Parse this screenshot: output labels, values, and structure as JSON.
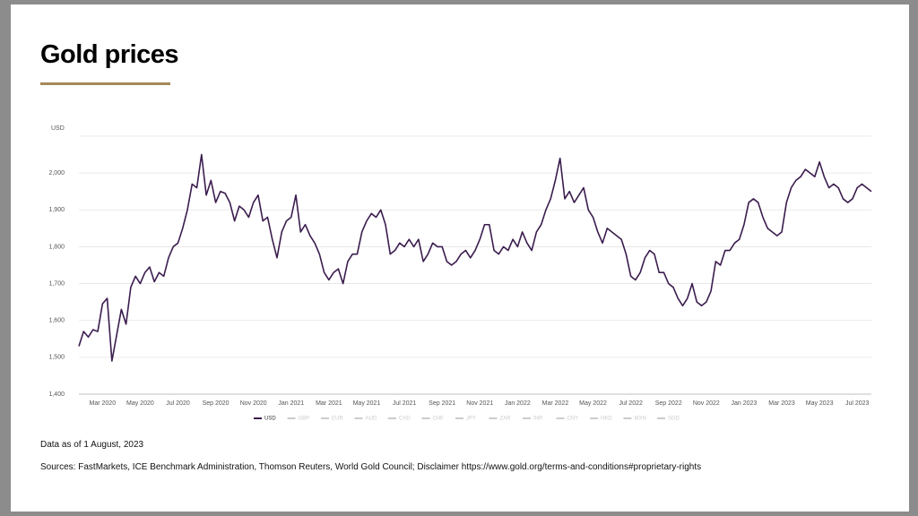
{
  "title": "Gold prices",
  "notes": [
    "Data as of 1 August, 2023",
    "Sources: FastMarkets, ICE Benchmark Administration, Thomson Reuters, World Gold Council; Disclaimer https://www.gold.org/terms-and-conditions#proprietary-rights"
  ],
  "chart_data": {
    "type": "line",
    "y_axis_label": "USD",
    "categories": [
      null,
      null,
      null,
      null,
      null,
      "Mar 2020",
      null,
      null,
      null,
      null,
      null,
      null,
      null,
      "May 2020",
      null,
      null,
      null,
      null,
      null,
      null,
      null,
      "Jul 2020",
      null,
      null,
      null,
      null,
      null,
      null,
      null,
      "Sep 2020",
      null,
      null,
      null,
      null,
      null,
      null,
      null,
      "Nov 2020",
      null,
      null,
      null,
      null,
      null,
      null,
      null,
      "Jan 2021",
      null,
      null,
      null,
      null,
      null,
      null,
      null,
      "Mar 2021",
      null,
      null,
      null,
      null,
      null,
      null,
      null,
      "May 2021",
      null,
      null,
      null,
      null,
      null,
      null,
      null,
      "Jul 2021",
      null,
      null,
      null,
      null,
      null,
      null,
      null,
      "Sep 2021",
      null,
      null,
      null,
      null,
      null,
      null,
      null,
      "Nov 2021",
      null,
      null,
      null,
      null,
      null,
      null,
      null,
      "Jan 2022",
      null,
      null,
      null,
      null,
      null,
      null,
      null,
      "Mar 2022",
      null,
      null,
      null,
      null,
      null,
      null,
      null,
      "May 2022",
      null,
      null,
      null,
      null,
      null,
      null,
      null,
      "Jul 2022",
      null,
      null,
      null,
      null,
      null,
      null,
      null,
      "Sep 2022",
      null,
      null,
      null,
      null,
      null,
      null,
      null,
      "Nov 2022",
      null,
      null,
      null,
      null,
      null,
      null,
      null,
      "Jan 2023",
      null,
      null,
      null,
      null,
      null,
      null,
      null,
      "Mar 2023",
      null,
      null,
      null,
      null,
      null,
      null,
      null,
      "May 2023",
      null,
      null,
      null,
      null,
      null,
      null,
      null,
      "Jul 2023",
      null,
      null,
      null
    ],
    "series": [
      {
        "name": "USD",
        "color": "#3b1c4e",
        "values": [
          1530,
          1570,
          1555,
          1575,
          1570,
          1645,
          1660,
          1490,
          1560,
          1630,
          1590,
          1690,
          1720,
          1700,
          1730,
          1745,
          1705,
          1730,
          1720,
          1770,
          1800,
          1810,
          1850,
          1900,
          1970,
          1960,
          2050,
          1940,
          1980,
          1920,
          1950,
          1945,
          1920,
          1870,
          1910,
          1900,
          1880,
          1920,
          1940,
          1870,
          1880,
          1820,
          1770,
          1840,
          1870,
          1880,
          1940,
          1840,
          1860,
          1830,
          1810,
          1780,
          1730,
          1710,
          1730,
          1740,
          1700,
          1760,
          1780,
          1780,
          1840,
          1870,
          1890,
          1880,
          1900,
          1860,
          1780,
          1790,
          1810,
          1800,
          1820,
          1800,
          1820,
          1760,
          1780,
          1810,
          1800,
          1800,
          1760,
          1750,
          1760,
          1780,
          1790,
          1770,
          1790,
          1820,
          1860,
          1860,
          1790,
          1780,
          1800,
          1790,
          1820,
          1800,
          1840,
          1810,
          1790,
          1840,
          1860,
          1900,
          1930,
          1980,
          2040,
          1930,
          1950,
          1920,
          1940,
          1960,
          1900,
          1880,
          1840,
          1810,
          1850,
          1840,
          1830,
          1820,
          1780,
          1720,
          1710,
          1730,
          1770,
          1790,
          1780,
          1730,
          1730,
          1700,
          1690,
          1660,
          1640,
          1660,
          1700,
          1650,
          1640,
          1650,
          1680,
          1760,
          1750,
          1790,
          1790,
          1810,
          1820,
          1860,
          1920,
          1930,
          1920,
          1880,
          1850,
          1840,
          1830,
          1840,
          1920,
          1960,
          1980,
          1990,
          2010,
          2000,
          1990,
          2030,
          1990,
          1960,
          1970,
          1960,
          1930,
          1920,
          1930,
          1960,
          1970,
          1960,
          1950
        ]
      }
    ],
    "inactive_legend": [
      "GBP",
      "EUR",
      "AUD",
      "CAD",
      "CHF",
      "JPY",
      "ZAR",
      "INR",
      "CNY",
      "HKD",
      "MXN",
      "SGD"
    ],
    "inactive_color": "#cccccc",
    "ylim": [
      1400,
      2100
    ],
    "yticks": [
      {
        "value": 1400,
        "label": "1,400"
      },
      {
        "value": 1500,
        "label": "1,500"
      },
      {
        "value": 1600,
        "label": "1,600"
      },
      {
        "value": 1700,
        "label": "1,700"
      },
      {
        "value": 1800,
        "label": "1,800"
      },
      {
        "value": 1900,
        "label": "1,900"
      },
      {
        "value": 2000,
        "label": "2,000"
      }
    ],
    "grid": true
  }
}
